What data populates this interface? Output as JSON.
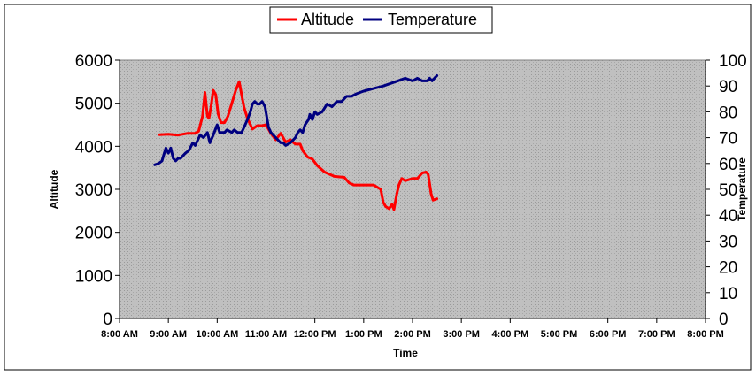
{
  "chart_data": {
    "type": "line",
    "title": "",
    "xlabel": "Time",
    "ylabel": "Altitude",
    "y2label": "Temperature",
    "x_ticks": [
      "8:00 AM",
      "9:00 AM",
      "10:00 AM",
      "11:00 AM",
      "12:00 PM",
      "1:00 PM",
      "2:00 PM",
      "3:00 PM",
      "4:00 PM",
      "5:00 PM",
      "6:00 PM",
      "7:00 PM",
      "8:00 PM"
    ],
    "y_ticks": [
      "0",
      "1000",
      "2000",
      "3000",
      "4000",
      "5000",
      "6000"
    ],
    "y2_ticks": [
      "0",
      "10",
      "20",
      "30",
      "40",
      "50",
      "60",
      "70",
      "80",
      "90",
      "100"
    ],
    "xlim_hours": [
      8,
      20
    ],
    "ylim": [
      0,
      6000
    ],
    "y2lim": [
      0,
      100
    ],
    "grid": false,
    "legend_position": "top-center",
    "background_color": "#c0c0c0",
    "series": [
      {
        "name": "Altitude",
        "axis": "left",
        "color": "#ff0000",
        "x_hours": [
          8.82,
          9.0,
          9.2,
          9.4,
          9.55,
          9.62,
          9.7,
          9.75,
          9.8,
          9.83,
          9.87,
          9.92,
          9.97,
          10.02,
          10.08,
          10.15,
          10.22,
          10.3,
          10.38,
          10.45,
          10.5,
          10.55,
          10.62,
          10.72,
          10.82,
          10.92,
          11.0,
          11.1,
          11.2,
          11.3,
          11.4,
          11.5,
          11.6,
          11.7,
          11.75,
          11.85,
          11.95,
          12.05,
          12.2,
          12.4,
          12.6,
          12.7,
          12.8,
          13.0,
          13.2,
          13.35,
          13.4,
          13.45,
          13.52,
          13.58,
          13.62,
          13.68,
          13.72,
          13.78,
          13.85,
          14.0,
          14.1,
          14.2,
          14.28,
          14.32,
          14.38,
          14.42,
          14.5
        ],
        "values": [
          4270,
          4280,
          4260,
          4300,
          4300,
          4350,
          4700,
          5250,
          4700,
          4650,
          4900,
          5300,
          5200,
          4750,
          4550,
          4550,
          4700,
          5000,
          5300,
          5500,
          5200,
          4900,
          4650,
          4400,
          4480,
          4480,
          4500,
          4300,
          4150,
          4300,
          4100,
          4150,
          4050,
          4050,
          3900,
          3750,
          3700,
          3550,
          3400,
          3300,
          3280,
          3150,
          3100,
          3100,
          3100,
          3000,
          2700,
          2600,
          2550,
          2650,
          2530,
          2900,
          3100,
          3250,
          3200,
          3250,
          3250,
          3380,
          3400,
          3350,
          2900,
          2750,
          2780
        ]
      },
      {
        "name": "Temperature",
        "axis": "right",
        "color": "#000080",
        "x_hours": [
          8.72,
          8.8,
          8.87,
          8.9,
          8.95,
          9.0,
          9.05,
          9.1,
          9.15,
          9.2,
          9.25,
          9.3,
          9.35,
          9.42,
          9.5,
          9.55,
          9.6,
          9.65,
          9.72,
          9.8,
          9.85,
          9.92,
          10.0,
          10.05,
          10.1,
          10.15,
          10.2,
          10.3,
          10.35,
          10.42,
          10.5,
          10.55,
          10.62,
          10.68,
          10.72,
          10.77,
          10.82,
          10.87,
          10.92,
          10.98,
          11.05,
          11.1,
          11.15,
          11.2,
          11.25,
          11.3,
          11.35,
          11.4,
          11.5,
          11.6,
          11.65,
          11.7,
          11.75,
          11.8,
          11.87,
          11.9,
          11.95,
          12.0,
          12.05,
          12.15,
          12.25,
          12.35,
          12.45,
          12.55,
          12.65,
          12.75,
          12.85,
          13.0,
          13.2,
          13.4,
          13.55,
          13.7,
          13.85,
          14.0,
          14.1,
          14.2,
          14.3,
          14.35,
          14.4,
          14.45,
          14.5
        ],
        "values": [
          59.5,
          60,
          61,
          63,
          66,
          64,
          66,
          62,
          61,
          62,
          62,
          63,
          64,
          65,
          68,
          67,
          69,
          71,
          70,
          72,
          68,
          71,
          75,
          72,
          72,
          72,
          73,
          72,
          73,
          72,
          72,
          74,
          77,
          80,
          83,
          84,
          83,
          83,
          84,
          82,
          74,
          72,
          71,
          70,
          69,
          68,
          68,
          67,
          68,
          70,
          72,
          73,
          72,
          75,
          77,
          79,
          77,
          80,
          79,
          80,
          83,
          82,
          84,
          84,
          86,
          86,
          87,
          88,
          89,
          90,
          91,
          92,
          93,
          92,
          93,
          92,
          92,
          93,
          92,
          93,
          94
        ]
      }
    ]
  }
}
